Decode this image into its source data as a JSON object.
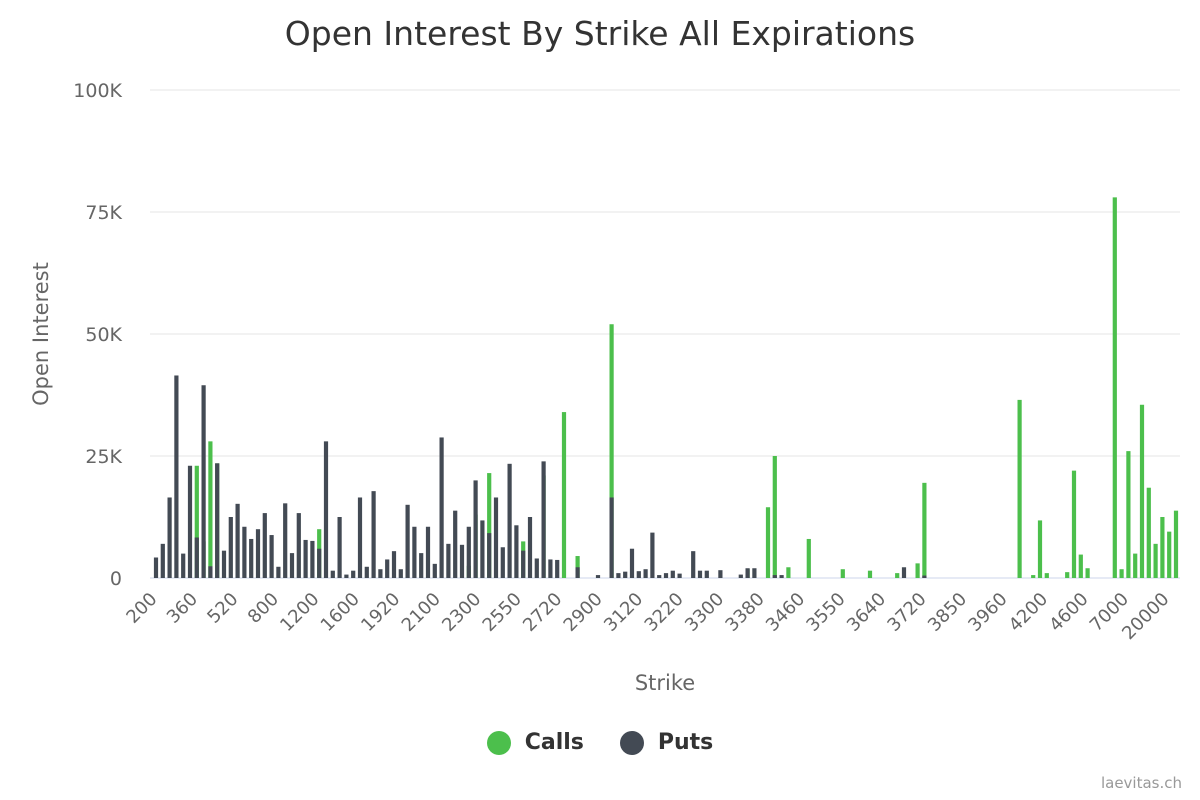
{
  "chart_data": {
    "type": "bar",
    "title": "Open Interest By Strike All Expirations",
    "xlabel": "Strike",
    "ylabel": "Open Interest",
    "ylim": [
      0,
      100000
    ],
    "yticks": [
      {
        "value": 0,
        "label": "0"
      },
      {
        "value": 25000,
        "label": "25K"
      },
      {
        "value": 50000,
        "label": "50K"
      },
      {
        "value": 75000,
        "label": "75K"
      },
      {
        "value": 100000,
        "label": "100K"
      }
    ],
    "xtick_labels": [
      "200",
      "360",
      "520",
      "800",
      "1200",
      "1600",
      "1920",
      "2100",
      "2300",
      "2550",
      "2720",
      "2900",
      "3120",
      "3220",
      "3300",
      "3380",
      "3460",
      "3550",
      "3640",
      "3720",
      "3850",
      "3960",
      "4200",
      "4600",
      "7000",
      "20000"
    ],
    "grid": true,
    "legend_position": "bottom-center",
    "series": [
      {
        "name": "Calls",
        "color": "#4cbf4c",
        "values": [
          0,
          0,
          0,
          0,
          0,
          0,
          23000,
          7500,
          28000,
          23500,
          0,
          0,
          0,
          0,
          0,
          0,
          0,
          0,
          0,
          0,
          0,
          0,
          0,
          0,
          10000,
          0,
          0,
          0,
          0,
          0,
          0,
          0,
          0,
          0,
          0,
          0,
          0,
          0,
          0,
          0,
          0,
          0,
          0,
          0,
          0,
          0,
          2500,
          13000,
          0,
          21500,
          0,
          0,
          0,
          0,
          7500,
          0,
          0,
          21000,
          0,
          0,
          34000,
          0,
          4500,
          0,
          0,
          0,
          0,
          52000,
          0,
          0,
          0,
          0,
          0,
          0,
          0,
          0,
          0,
          0,
          0,
          0,
          0,
          0,
          0,
          0,
          0,
          0,
          0,
          1800,
          0,
          0,
          14500,
          25000,
          0,
          2200,
          0,
          0,
          8000,
          0,
          0,
          0,
          0,
          1800,
          0,
          0,
          0,
          1500,
          0,
          0,
          0,
          1000,
          0,
          0,
          3000,
          19500,
          0,
          0,
          0,
          0,
          0,
          0,
          0,
          0,
          0,
          0,
          0,
          0,
          0,
          36500,
          0,
          600,
          11800,
          1000,
          0,
          0,
          1200,
          22000,
          4800,
          2000,
          0,
          0,
          0,
          78000,
          1800,
          26000,
          5000,
          35500,
          18500,
          7000,
          12500,
          9500,
          13800
        ]
      },
      {
        "name": "Puts",
        "color": "#434a54",
        "values": [
          4200,
          7000,
          16500,
          41500,
          5000,
          23000,
          8300,
          39500,
          2400,
          23500,
          5600,
          12500,
          15200,
          10500,
          8000,
          10000,
          13300,
          8800,
          2300,
          15300,
          5100,
          13300,
          7800,
          7600,
          6000,
          28000,
          1500,
          12500,
          700,
          1500,
          16500,
          2300,
          17800,
          1800,
          3800,
          5500,
          1800,
          15000,
          10500,
          5100,
          10500,
          2900,
          28800,
          7000,
          13800,
          6800,
          10500,
          20000,
          11800,
          9200,
          16500,
          6300,
          23400,
          10800,
          5600,
          12500,
          4000,
          23900,
          3800,
          3700,
          0,
          0,
          2200,
          0,
          0,
          600,
          0,
          16500,
          1000,
          1300,
          6000,
          1400,
          1800,
          9300,
          600,
          1000,
          1500,
          900,
          0,
          5500,
          1500,
          1500,
          0,
          1600,
          0,
          0,
          700,
          2000,
          2000,
          0,
          0,
          600,
          600,
          0,
          0,
          0,
          0,
          0,
          0,
          0,
          0,
          0,
          0,
          0,
          0,
          0,
          0,
          0,
          0,
          0,
          2200,
          0,
          0,
          500,
          0,
          0,
          0,
          0,
          0,
          0,
          0,
          0,
          0,
          0,
          0,
          0,
          0,
          0,
          0,
          0,
          0,
          0,
          0,
          0,
          0,
          0,
          0,
          0,
          0,
          0,
          0,
          0,
          0,
          0,
          0,
          0,
          0,
          0,
          0,
          0
        ]
      }
    ]
  },
  "legend": {
    "calls_label": "Calls",
    "puts_label": "Puts"
  },
  "credit": "laevitas.ch"
}
